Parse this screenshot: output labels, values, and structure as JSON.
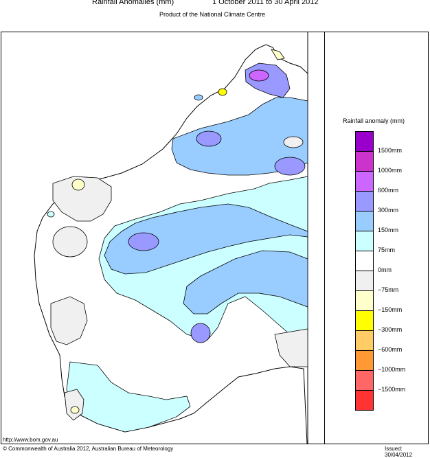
{
  "header": {
    "title": "Rainfall Anomalies (mm)",
    "period": "1 October 2011 to 30 April 2012",
    "subtitle": "Product of the National Climate Centre"
  },
  "legend": {
    "title": "Rainfall anomaly (mm)",
    "swatches": [
      {
        "color": "#9900cc"
      },
      {
        "color": "#cc33cc"
      },
      {
        "color": "#cc66ff"
      },
      {
        "color": "#9999ff"
      },
      {
        "color": "#99ccff"
      },
      {
        "color": "#ccffff"
      },
      {
        "color": "#ffffff"
      },
      {
        "color": "#f0f0f0"
      },
      {
        "color": "#ffffcc"
      },
      {
        "color": "#ffff00"
      },
      {
        "color": "#ffcc66"
      },
      {
        "color": "#ff9933"
      },
      {
        "color": "#ff6666"
      },
      {
        "color": "#ff3333"
      }
    ],
    "labels": [
      "1500mm",
      "1000mm",
      "600mm",
      "300mm",
      "150mm",
      "75mm",
      "0mm",
      "−75mm",
      "−150mm",
      "−300mm",
      "−600mm",
      "−1000mm",
      "−1500mm"
    ]
  },
  "footer": {
    "url": "http://www.bom.gov.au",
    "copyright": "© Commonwealth of Australia 2012, Australian Bureau of Meteorology",
    "issued": "Issued: 30/04/2012"
  }
}
